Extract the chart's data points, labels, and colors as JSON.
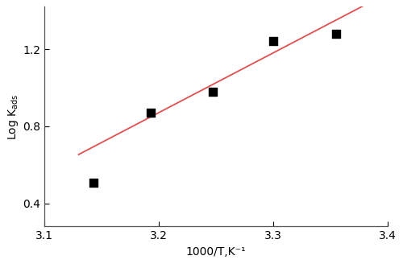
{
  "scatter_x": [
    3.143,
    3.193,
    3.247,
    3.3,
    3.355
  ],
  "scatter_y": [
    0.505,
    0.872,
    0.978,
    1.243,
    1.279
  ],
  "line_x": [
    3.13,
    3.4
  ],
  "line_slope": 3.1,
  "line_intercept": -9.05,
  "xlabel": "1000/T,K⁻¹",
  "xlim": [
    3.1,
    3.4
  ],
  "ylim": [
    0.28,
    1.42
  ],
  "yticks": [
    0.4,
    0.8,
    1.2
  ],
  "xticks": [
    3.1,
    3.2,
    3.3,
    3.4
  ],
  "line_color": "#e05050",
  "marker_color": "black",
  "marker_size": 55,
  "linewidth": 1.3,
  "background_color": "#ffffff",
  "tick_fontsize": 10,
  "label_fontsize": 10
}
